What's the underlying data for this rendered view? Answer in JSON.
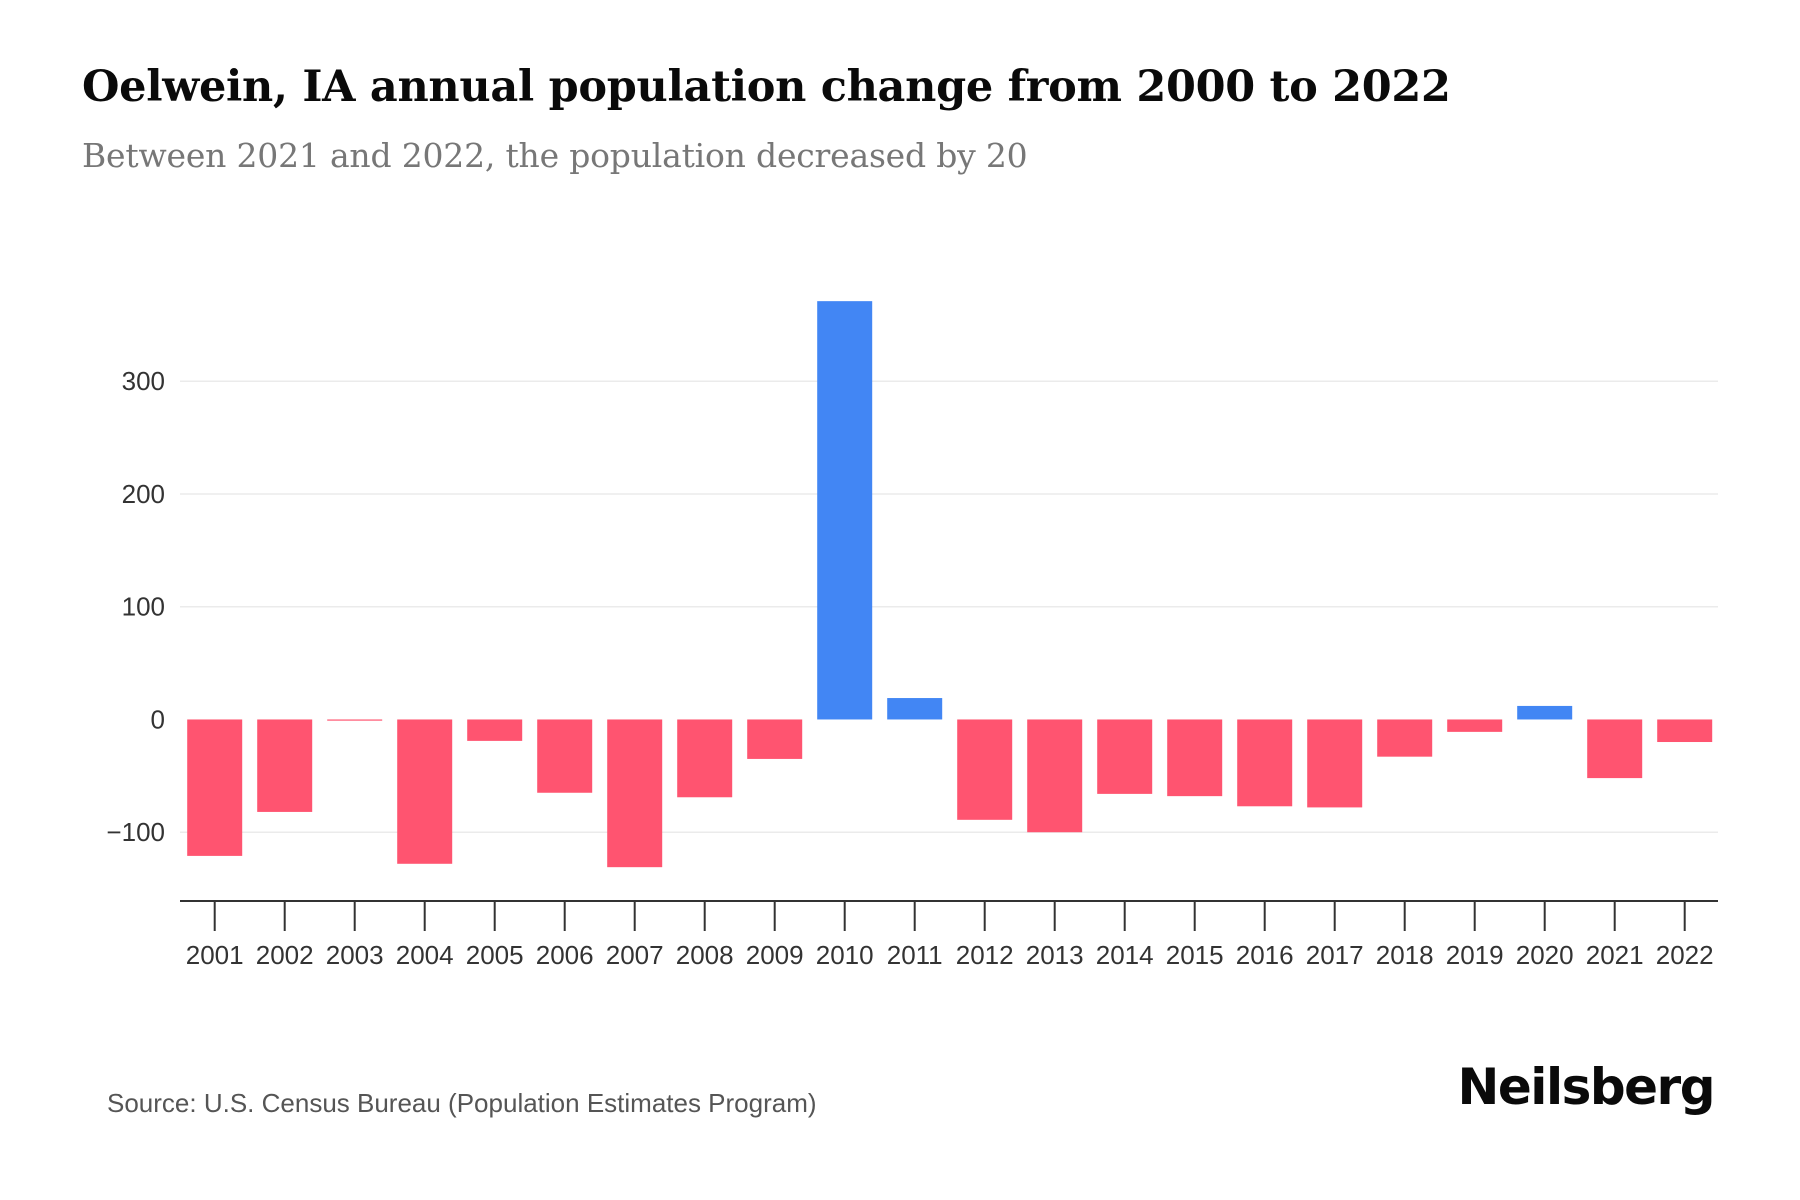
{
  "header": {
    "title": "Oelwein, IA annual population change from 2000 to 2022",
    "subtitle": "Between 2021 and 2022, the population decreased by 20"
  },
  "footer": {
    "source": "Source: U.S. Census Bureau (Population Estimates Program)",
    "brand": "Neilsberg"
  },
  "colors": {
    "positive": "#4286F4",
    "negative": "#FF5470",
    "axis": "#333333",
    "grid": "#EBEBEB"
  },
  "chart_data": {
    "type": "bar",
    "title": "Oelwein, IA annual population change from 2000 to 2022",
    "subtitle": "Between 2021 and 2022, the population decreased by 20",
    "xlabel": "",
    "ylabel": "",
    "categories": [
      "2001",
      "2002",
      "2003",
      "2004",
      "2005",
      "2006",
      "2007",
      "2008",
      "2009",
      "2010",
      "2011",
      "2012",
      "2013",
      "2014",
      "2015",
      "2016",
      "2017",
      "2018",
      "2019",
      "2020",
      "2021",
      "2022"
    ],
    "values": [
      -121,
      -82,
      -1,
      -128,
      -19,
      -65,
      -131,
      -69,
      -35,
      371,
      19,
      -89,
      -100,
      -66,
      -68,
      -77,
      -78,
      -33,
      -11,
      12,
      -52,
      -20
    ],
    "yticks": [
      -100,
      0,
      100,
      200,
      300
    ],
    "ytick_labels": [
      "−100",
      "0",
      "100",
      "200",
      "300"
    ],
    "ylim": [
      -161,
      380
    ],
    "grid": true,
    "legend": "none",
    "source": "Source: U.S. Census Bureau (Population Estimates Program)"
  }
}
